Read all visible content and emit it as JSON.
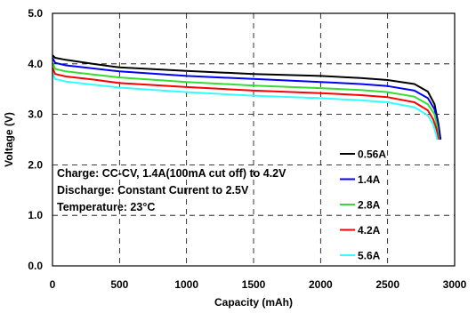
{
  "chart_data": {
    "type": "line",
    "xlabel": "Capacity (mAh)",
    "ylabel": "Voltage (V)",
    "xlim": [
      0,
      3000
    ],
    "ylim": [
      0,
      5
    ],
    "x_ticks": [
      "0",
      "500",
      "1000",
      "1500",
      "2000",
      "2500",
      "3000"
    ],
    "y_ticks": [
      "0.0",
      "1.0",
      "2.0",
      "3.0",
      "4.0",
      "5.0"
    ],
    "grid": true,
    "legend_position": "right",
    "annotations": [
      "Charge: CC-CV, 1.4A(100mA cut off) to 4.2V",
      "Discharge: Constant Current to 2.5V",
      "Temperature: 23°C"
    ],
    "series": [
      {
        "name": "0.56A",
        "color": "#000000",
        "points": [
          [
            0,
            4.17
          ],
          [
            20,
            4.12
          ],
          [
            100,
            4.08
          ],
          [
            300,
            4.0
          ],
          [
            500,
            3.93
          ],
          [
            1000,
            3.86
          ],
          [
            1500,
            3.8
          ],
          [
            2000,
            3.76
          ],
          [
            2300,
            3.72
          ],
          [
            2500,
            3.68
          ],
          [
            2700,
            3.6
          ],
          [
            2800,
            3.45
          ],
          [
            2850,
            3.2
          ],
          [
            2880,
            2.8
          ],
          [
            2895,
            2.5
          ]
        ]
      },
      {
        "name": "1.4A",
        "color": "#0000ff",
        "points": [
          [
            0,
            4.12
          ],
          [
            20,
            4.02
          ],
          [
            100,
            3.97
          ],
          [
            300,
            3.91
          ],
          [
            500,
            3.85
          ],
          [
            1000,
            3.76
          ],
          [
            1500,
            3.7
          ],
          [
            2000,
            3.64
          ],
          [
            2300,
            3.6
          ],
          [
            2500,
            3.56
          ],
          [
            2700,
            3.47
          ],
          [
            2800,
            3.32
          ],
          [
            2850,
            3.1
          ],
          [
            2875,
            2.8
          ],
          [
            2890,
            2.5
          ]
        ]
      },
      {
        "name": "2.8A",
        "color": "#33dd33",
        "points": [
          [
            0,
            4.02
          ],
          [
            20,
            3.9
          ],
          [
            100,
            3.85
          ],
          [
            300,
            3.79
          ],
          [
            500,
            3.73
          ],
          [
            1000,
            3.64
          ],
          [
            1500,
            3.57
          ],
          [
            2000,
            3.52
          ],
          [
            2300,
            3.48
          ],
          [
            2500,
            3.44
          ],
          [
            2700,
            3.35
          ],
          [
            2800,
            3.2
          ],
          [
            2850,
            3.0
          ],
          [
            2870,
            2.75
          ],
          [
            2882,
            2.5
          ]
        ]
      },
      {
        "name": "4.2A",
        "color": "#ff0000",
        "points": [
          [
            0,
            3.92
          ],
          [
            20,
            3.8
          ],
          [
            100,
            3.75
          ],
          [
            300,
            3.69
          ],
          [
            500,
            3.62
          ],
          [
            1000,
            3.54
          ],
          [
            1500,
            3.47
          ],
          [
            2000,
            3.42
          ],
          [
            2300,
            3.38
          ],
          [
            2500,
            3.34
          ],
          [
            2700,
            3.24
          ],
          [
            2800,
            3.08
          ],
          [
            2840,
            2.9
          ],
          [
            2865,
            2.7
          ],
          [
            2878,
            2.5
          ]
        ]
      },
      {
        "name": "5.6A",
        "color": "#33ffff",
        "points": [
          [
            0,
            3.82
          ],
          [
            20,
            3.7
          ],
          [
            100,
            3.65
          ],
          [
            300,
            3.59
          ],
          [
            500,
            3.53
          ],
          [
            1000,
            3.44
          ],
          [
            1500,
            3.37
          ],
          [
            2000,
            3.32
          ],
          [
            2300,
            3.28
          ],
          [
            2500,
            3.24
          ],
          [
            2700,
            3.14
          ],
          [
            2800,
            2.98
          ],
          [
            2840,
            2.8
          ],
          [
            2860,
            2.62
          ],
          [
            2870,
            2.5
          ]
        ]
      }
    ]
  }
}
